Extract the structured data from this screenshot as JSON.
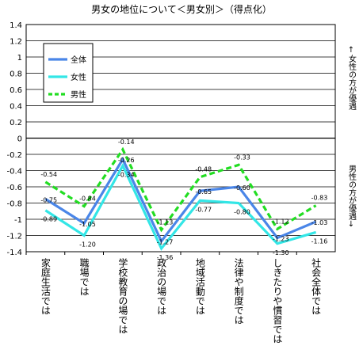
{
  "chart_data": {
    "type": "line",
    "title": "男女の地位について＜男女別＞（得点化）",
    "categories": [
      "家庭生活では",
      "職場では",
      "学校教育の場では",
      "政治の場では",
      "地域活動では",
      "法律や制度では",
      "しきたりや慣習では",
      "社会全体では"
    ],
    "series": [
      {
        "name": "全体",
        "color": "#4a86e8",
        "values": [
          -0.75,
          -1.05,
          -0.26,
          -1.27,
          -0.65,
          -0.6,
          -1.23,
          -1.03
        ]
      },
      {
        "name": "女性",
        "color": "#33e6e6",
        "values": [
          -0.89,
          -1.2,
          -0.34,
          -1.36,
          -0.77,
          -0.8,
          -1.3,
          -1.16
        ]
      },
      {
        "name": "男性",
        "color": "#22dd22",
        "values": [
          -0.54,
          -0.84,
          -0.14,
          -1.13,
          -0.48,
          -0.33,
          -1.12,
          -0.83
        ]
      }
    ],
    "ylim": [
      -1.4,
      1.4
    ],
    "yticks": [
      1.4,
      1.2,
      1,
      0.8,
      0.6,
      0.4,
      0.2,
      0,
      -0.2,
      -0.4,
      -0.6,
      -0.8,
      -1,
      -1.2,
      -1.4
    ],
    "annotations": {
      "upper": "↑女性の方が優遇",
      "lower": "男性の方が優遇↓"
    },
    "legend_position": "top-left",
    "grid": true
  }
}
